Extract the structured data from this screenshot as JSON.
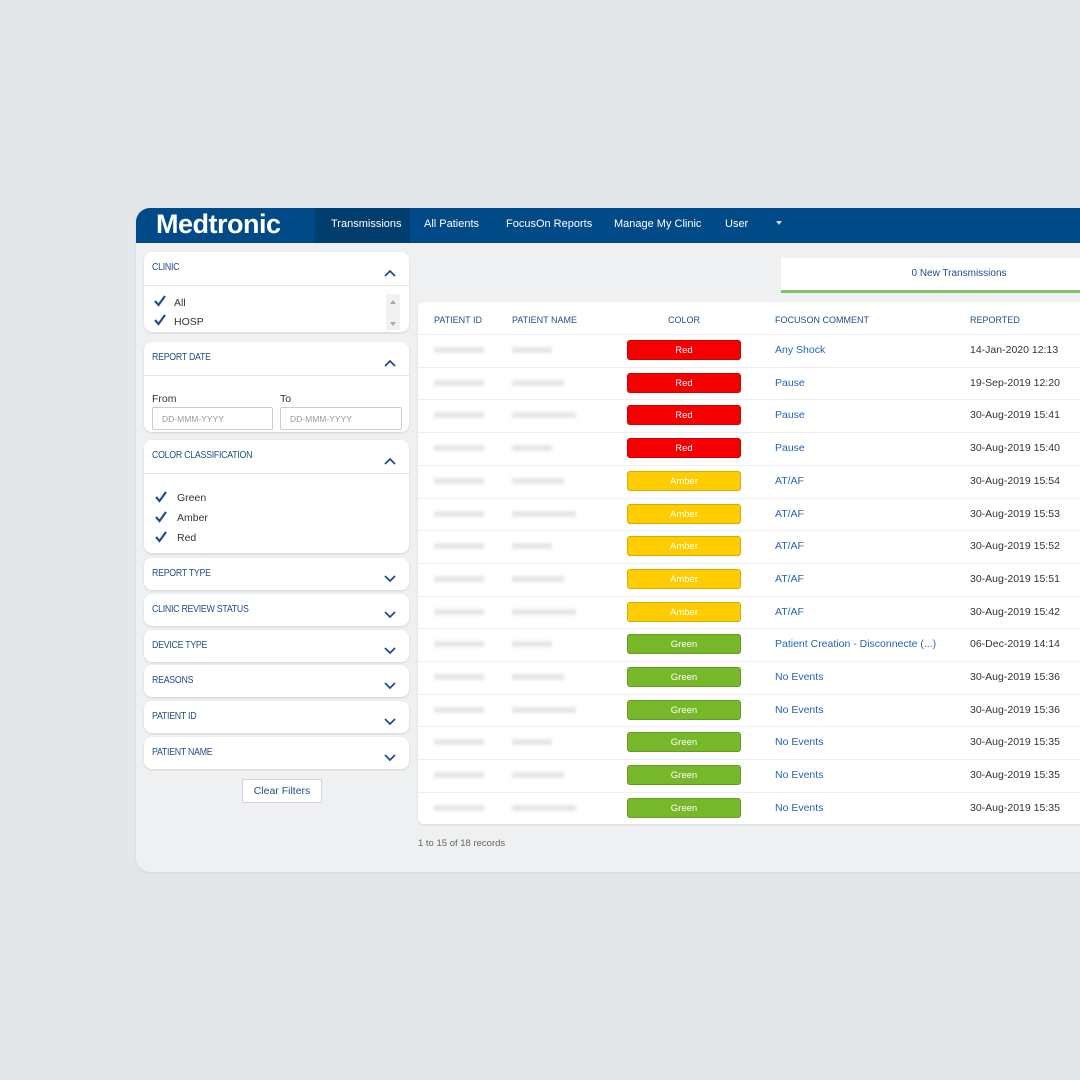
{
  "header": {
    "logo": "Medtronic",
    "nav": [
      "Transmissions",
      "All Patients",
      "FocusOn Reports",
      "Manage My Clinic",
      "User"
    ]
  },
  "filters": {
    "clinic": {
      "title": "CLINIC",
      "options": [
        "All",
        "HOSP"
      ]
    },
    "report_date": {
      "title": "REPORT DATE",
      "from_label": "From",
      "to_label": "To",
      "from_placeholder": "DD-MMM-YYYY",
      "to_placeholder": "DD-MMM-YYYY"
    },
    "color_classification": {
      "title": "COLOR CLASSIFICATION",
      "options": [
        "Green",
        "Amber",
        "Red"
      ]
    },
    "collapsed": [
      "REPORT TYPE",
      "CLINIC REVIEW STATUS",
      "DEVICE TYPE",
      "REASONS",
      "PATIENT ID",
      "PATIENT NAME"
    ],
    "clear_button": "Clear Filters"
  },
  "tab": "0 New Transmissions",
  "table": {
    "columns": [
      "PATIENT ID",
      "PATIENT NAME",
      "COLOR",
      "FOCUSON COMMENT",
      "REPORTED"
    ],
    "rows": [
      {
        "color": "Red",
        "badge_color": "#f50000",
        "comment": "Any Shock",
        "reported": "14-Jan-2020 12:13"
      },
      {
        "color": "Red",
        "badge_color": "#f50000",
        "comment": "Pause",
        "reported": "19-Sep-2019 12:20"
      },
      {
        "color": "Red",
        "badge_color": "#f50000",
        "comment": "Pause",
        "reported": "30-Aug-2019 15:41"
      },
      {
        "color": "Red",
        "badge_color": "#f50000",
        "comment": "Pause",
        "reported": "30-Aug-2019 15:40"
      },
      {
        "color": "Amber",
        "badge_color": "#ffcc00",
        "comment": "AT/AF",
        "reported": "30-Aug-2019 15:54"
      },
      {
        "color": "Amber",
        "badge_color": "#ffcc00",
        "comment": "AT/AF",
        "reported": "30-Aug-2019 15:53"
      },
      {
        "color": "Amber",
        "badge_color": "#ffcc00",
        "comment": "AT/AF",
        "reported": "30-Aug-2019 15:52"
      },
      {
        "color": "Amber",
        "badge_color": "#ffcc00",
        "comment": "AT/AF",
        "reported": "30-Aug-2019 15:51"
      },
      {
        "color": "Amber",
        "badge_color": "#ffcc00",
        "comment": "AT/AF",
        "reported": "30-Aug-2019 15:42"
      },
      {
        "color": "Green",
        "badge_color": "#76b82a",
        "comment": "Patient Creation - Disconnecte (...)",
        "reported": "06-Dec-2019 14:14"
      },
      {
        "color": "Green",
        "badge_color": "#76b82a",
        "comment": "No Events",
        "reported": "30-Aug-2019 15:36"
      },
      {
        "color": "Green",
        "badge_color": "#76b82a",
        "comment": "No Events",
        "reported": "30-Aug-2019 15:36"
      },
      {
        "color": "Green",
        "badge_color": "#76b82a",
        "comment": "No Events",
        "reported": "30-Aug-2019 15:35"
      },
      {
        "color": "Green",
        "badge_color": "#76b82a",
        "comment": "No Events",
        "reported": "30-Aug-2019 15:35"
      },
      {
        "color": "Green",
        "badge_color": "#76b82a",
        "comment": "No Events",
        "reported": "30-Aug-2019 15:35"
      }
    ]
  },
  "footer": "1 to 15 of 18 records"
}
